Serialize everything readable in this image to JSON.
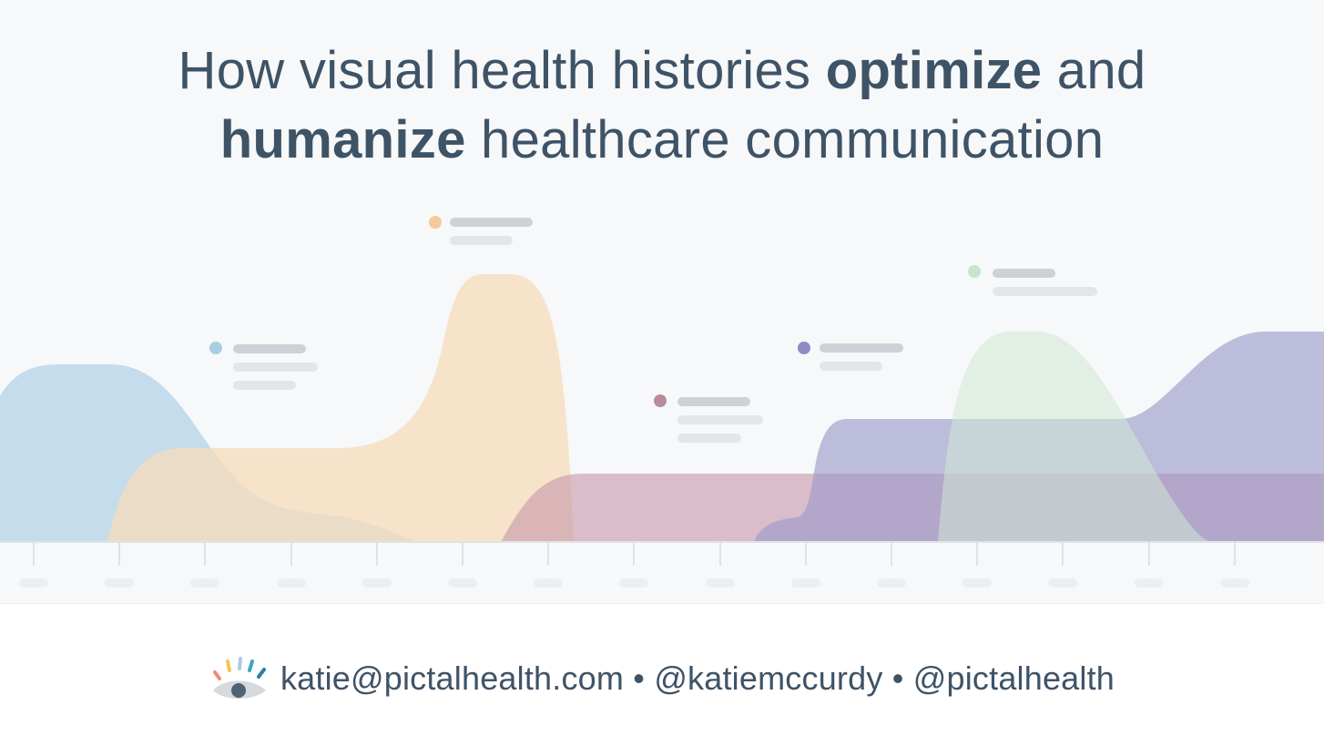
{
  "title": {
    "line1_a": "How visual health histories ",
    "line1_b": "optimize",
    "line1_c": " and",
    "line2_a": "humanize",
    "line2_b": " healthcare communication"
  },
  "footer": {
    "logo_icon": "pictal-eye-logo-icon",
    "email": "katie@pictalhealth.com",
    "separator": " • ",
    "handle_personal": "@katiemccurdy",
    "handle_company": "@pictalhealth"
  },
  "colors": {
    "title_text": "#3e5366",
    "blue": "#a9cde3",
    "peach": "#f6dcbc",
    "mauve": "#c89aab",
    "purple": "#9e9ccb",
    "green": "#cfe8d5",
    "placeholder_dark": "#cdd2d7",
    "placeholder_light": "#e3e6e9"
  }
}
